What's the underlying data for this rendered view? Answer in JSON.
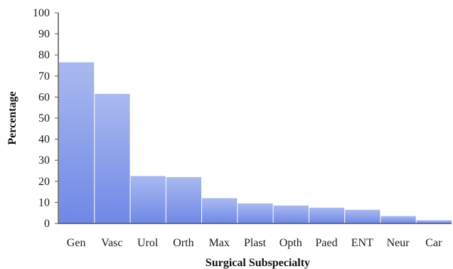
{
  "chart_data": {
    "type": "bar",
    "title": "",
    "xlabel": "Surgical Subspecialty",
    "ylabel": "Percentage",
    "ylim": [
      0,
      100
    ],
    "yticks": [
      0,
      10,
      20,
      30,
      40,
      50,
      60,
      70,
      80,
      90,
      100
    ],
    "categories": [
      "Gen",
      "Vasc",
      "Urol",
      "Orth",
      "Max",
      "Plast",
      "Opth",
      "Paed",
      "ENT",
      "Neur",
      "Car"
    ],
    "values": [
      76.5,
      61.5,
      22.5,
      22,
      12,
      9.5,
      8.5,
      7.5,
      6.5,
      3.5,
      1.5
    ],
    "grid": false,
    "legend": "none",
    "colors": {
      "bar_top": "#a9b9ef",
      "bar_bottom": "#6f88e6",
      "axis": "#555555",
      "text": "#1a1a1a"
    }
  }
}
